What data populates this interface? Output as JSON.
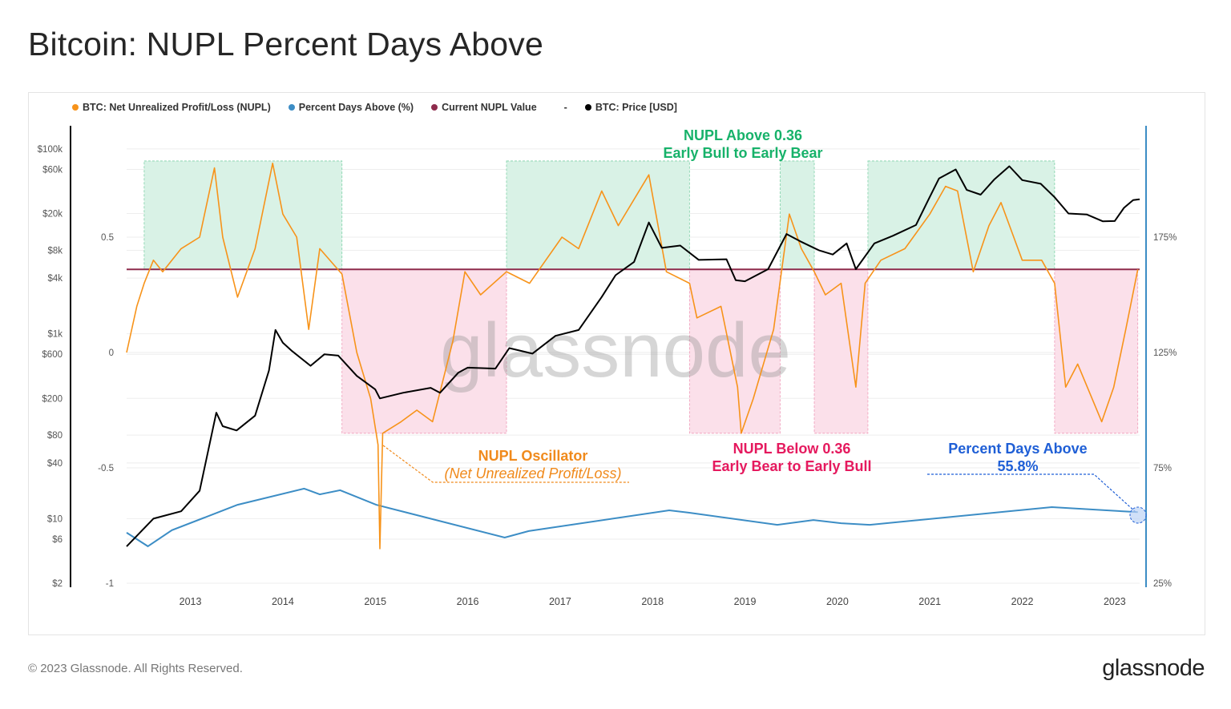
{
  "title": "Bitcoin: NUPL Percent Days Above",
  "footer": "© 2023 Glassnode. All Rights Reserved.",
  "logo": "glassnode",
  "watermark": "glassnode",
  "legend": [
    {
      "label": "BTC: Net Unrealized Profit/Loss (NUPL)",
      "color": "#f7931a"
    },
    {
      "label": "Percent Days Above (%)",
      "color": "#3c8dc5"
    },
    {
      "label": "Current NUPL Value",
      "color": "#8e2b4c"
    },
    {
      "label": "-",
      "color": ""
    },
    {
      "label": "BTC: Price [USD]",
      "color": "#000000"
    }
  ],
  "annotations": {
    "above_title": "NUPL Above 0.36",
    "above_sub": "Early Bull to Early Bear",
    "below_title": "NUPL Below 0.36",
    "below_sub": "Early Bear to Early Bull",
    "osc_title": "NUPL Oscillator",
    "osc_sub": "(Net Unrealized Profit/Loss)",
    "pda_title": "Percent Days Above",
    "pda_value": "55.8%"
  },
  "chart_data": {
    "type": "line",
    "title": "Bitcoin: NUPL Percent Days Above",
    "xlim": [
      2012.31,
      2023.27
    ],
    "x_ticks": [
      "2013",
      "2014",
      "2015",
      "2016",
      "2017",
      "2018",
      "2019",
      "2020",
      "2021",
      "2022",
      "2023"
    ],
    "nupl_axis": {
      "range": [
        -1,
        0.98
      ],
      "ticks": [
        "0.5",
        "0",
        "-0.5",
        "-1"
      ],
      "tick_values": [
        0.5,
        0,
        -0.5,
        -1
      ]
    },
    "percent_axis": {
      "range": [
        25,
        223
      ],
      "ticks": [
        "175%",
        "125%",
        "75%",
        "25%"
      ],
      "tick_values": [
        175,
        125,
        75,
        25
      ]
    },
    "price_axis": {
      "scale": "log",
      "range": [
        2,
        178000
      ],
      "ticks": [
        "$100k",
        "$60k",
        "$20k",
        "$8k",
        "$4k",
        "$1k",
        "$600",
        "$200",
        "$80",
        "$40",
        "$10",
        "$6",
        "$2"
      ],
      "tick_values": [
        100000,
        60000,
        20000,
        8000,
        4000,
        1000,
        600,
        200,
        80,
        40,
        10,
        6,
        2
      ]
    },
    "grid": true,
    "threshold": 0.36,
    "regions": [
      {
        "type": "above",
        "from": 2012.5,
        "to": 2014.64,
        "color": "#d9f2e6"
      },
      {
        "type": "below",
        "from": 2014.64,
        "to": 2016.42,
        "color": "#fbe0ea"
      },
      {
        "type": "above",
        "from": 2016.42,
        "to": 2018.4,
        "color": "#d9f2e6"
      },
      {
        "type": "below",
        "from": 2018.4,
        "to": 2019.38,
        "color": "#fbe0ea"
      },
      {
        "type": "above",
        "from": 2019.38,
        "to": 2019.75,
        "color": "#d9f2e6"
      },
      {
        "type": "below",
        "from": 2019.75,
        "to": 2020.33,
        "color": "#fbe0ea"
      },
      {
        "type": "above",
        "from": 2020.33,
        "to": 2022.35,
        "color": "#d9f2e6"
      },
      {
        "type": "below",
        "from": 2022.35,
        "to": 2023.25,
        "color": "#fbe0ea"
      }
    ],
    "region_nupl_bounds": {
      "above_top": 0.83,
      "below_bottom": -0.35
    },
    "series": [
      {
        "name": "BTC: Net Unrealized Profit/Loss (NUPL)",
        "axis": "nupl",
        "color": "#f7931a",
        "x": [
          2012.31,
          2012.42,
          2012.5,
          2012.6,
          2012.7,
          2012.9,
          2013.1,
          2013.26,
          2013.35,
          2013.51,
          2013.7,
          2013.89,
          2014.0,
          2014.15,
          2014.28,
          2014.4,
          2014.64,
          2014.8,
          2014.95,
          2015.03,
          2015.05,
          2015.08,
          2015.28,
          2015.45,
          2015.62,
          2015.84,
          2015.97,
          2016.14,
          2016.42,
          2016.67,
          2017.02,
          2017.2,
          2017.45,
          2017.63,
          2017.96,
          2018.15,
          2018.4,
          2018.48,
          2018.74,
          2018.92,
          2018.96,
          2019.09,
          2019.31,
          2019.48,
          2019.61,
          2019.75,
          2019.87,
          2020.04,
          2020.2,
          2020.3,
          2020.47,
          2020.73,
          2021.0,
          2021.17,
          2021.3,
          2021.47,
          2021.64,
          2021.77,
          2022.0,
          2022.21,
          2022.35,
          2022.47,
          2022.6,
          2022.86,
          2022.99,
          2023.12,
          2023.25
        ],
        "values": [
          0.0,
          0.2,
          0.3,
          0.4,
          0.35,
          0.45,
          0.5,
          0.8,
          0.5,
          0.24,
          0.45,
          0.82,
          0.6,
          0.5,
          0.1,
          0.45,
          0.34,
          0.0,
          -0.2,
          -0.4,
          -0.85,
          -0.35,
          -0.3,
          -0.25,
          -0.3,
          0.05,
          0.35,
          0.25,
          0.35,
          0.3,
          0.5,
          0.45,
          0.7,
          0.55,
          0.77,
          0.35,
          0.3,
          0.15,
          0.2,
          -0.15,
          -0.35,
          -0.2,
          0.1,
          0.6,
          0.45,
          0.35,
          0.25,
          0.3,
          -0.15,
          0.3,
          0.4,
          0.45,
          0.6,
          0.72,
          0.7,
          0.35,
          0.55,
          0.65,
          0.4,
          0.4,
          0.3,
          -0.15,
          -0.05,
          -0.3,
          -0.15,
          0.1,
          0.36
        ]
      },
      {
        "name": "Percent Days Above (%)",
        "axis": "percent",
        "color": "#3c8dc5",
        "x": [
          2012.31,
          2012.54,
          2012.8,
          2013.51,
          2014.23,
          2014.4,
          2014.62,
          2015.01,
          2016.4,
          2016.66,
          2018.18,
          2018.39,
          2019.35,
          2019.74,
          2020.04,
          2020.35,
          2022.32,
          2023.25
        ],
        "values": [
          46.9,
          41.0,
          48.0,
          59.0,
          66.0,
          63.5,
          65.3,
          59.0,
          44.8,
          47.6,
          56.6,
          55.6,
          50.3,
          52.4,
          51.0,
          50.3,
          58.0,
          55.8
        ]
      },
      {
        "name": "Current NUPL Value",
        "axis": "nupl",
        "color": "#8e2b4c",
        "x": [
          2012.31,
          2023.27
        ],
        "values": [
          0.36,
          0.36
        ]
      },
      {
        "name": "BTC: Price [USD]",
        "axis": "price",
        "color": "#000000",
        "x": [
          2012.31,
          2012.6,
          2012.9,
          2013.1,
          2013.28,
          2013.35,
          2013.5,
          2013.7,
          2013.85,
          2013.92,
          2014.0,
          2014.1,
          2014.3,
          2014.45,
          2014.6,
          2014.8,
          2015.0,
          2015.05,
          2015.3,
          2015.6,
          2015.7,
          2015.9,
          2016.0,
          2016.3,
          2016.45,
          2016.7,
          2016.95,
          2017.2,
          2017.45,
          2017.6,
          2017.8,
          2017.96,
          2018.1,
          2018.3,
          2018.5,
          2018.8,
          2018.9,
          2019.0,
          2019.25,
          2019.45,
          2019.6,
          2019.8,
          2019.95,
          2020.1,
          2020.2,
          2020.4,
          2020.6,
          2020.85,
          2020.99,
          2021.1,
          2021.28,
          2021.4,
          2021.55,
          2021.7,
          2021.86,
          2022.0,
          2022.2,
          2022.35,
          2022.5,
          2022.7,
          2022.87,
          2023.0,
          2023.1,
          2023.2,
          2023.27
        ],
        "values": [
          5,
          10,
          12,
          20,
          140,
          100,
          90,
          130,
          400,
          1100,
          800,
          650,
          450,
          600,
          580,
          350,
          250,
          200,
          230,
          260,
          230,
          380,
          430,
          420,
          700,
          610,
          950,
          1100,
          2500,
          4300,
          6000,
          16000,
          8500,
          9000,
          6300,
          6400,
          3800,
          3700,
          5000,
          12000,
          10000,
          8000,
          7200,
          9500,
          5000,
          9500,
          11500,
          15000,
          29000,
          48000,
          60000,
          36000,
          32000,
          47000,
          65000,
          46000,
          42000,
          30000,
          20000,
          19500,
          16500,
          16600,
          23000,
          28000,
          28500
        ]
      }
    ]
  }
}
